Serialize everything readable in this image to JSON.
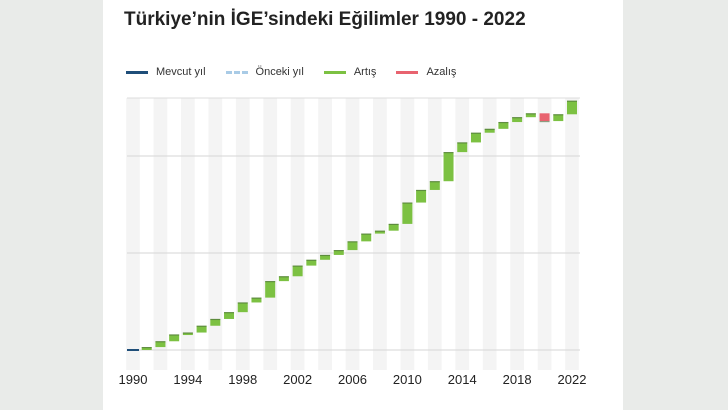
{
  "title": "Türkiye’nin İGE’sindeki Eğilimler 1990 - 2022",
  "legend": [
    {
      "label": "Mevcut yıl",
      "color": "#1f4e79",
      "style": "solid"
    },
    {
      "label": "Önceki yıl",
      "color": "#a9cbe6",
      "style": "dashed"
    },
    {
      "label": "Artış",
      "color": "#7cc142",
      "style": "solid"
    },
    {
      "label": "Azalış",
      "color": "#e8636f",
      "style": "solid"
    }
  ],
  "chart_data": {
    "type": "bar",
    "subtype": "waterfall",
    "title": "Türkiye’nin İGE’sindeki Eğilimler 1990 - 2022",
    "x": [
      1990,
      1991,
      1992,
      1993,
      1994,
      1995,
      1996,
      1997,
      1998,
      1999,
      2000,
      2001,
      2002,
      2003,
      2004,
      2005,
      2006,
      2007,
      2008,
      2009,
      2010,
      2011,
      2012,
      2013,
      2014,
      2015,
      2016,
      2017,
      2018,
      2019,
      2020,
      2021,
      2022
    ],
    "values": [
      0.6,
      0.603,
      0.609,
      0.616,
      0.618,
      0.625,
      0.632,
      0.639,
      0.649,
      0.654,
      0.671,
      0.676,
      0.687,
      0.693,
      0.698,
      0.703,
      0.712,
      0.72,
      0.723,
      0.73,
      0.752,
      0.765,
      0.774,
      0.804,
      0.814,
      0.824,
      0.828,
      0.835,
      0.84,
      0.844,
      0.836,
      0.843,
      0.857
    ],
    "x_ticks": [
      "1990",
      "1994",
      "1998",
      "2002",
      "2006",
      "2010",
      "2014",
      "2018",
      "2022"
    ],
    "ylim": [
      0.58,
      0.86
    ],
    "y_gridlines": [
      0.6,
      0.7,
      0.8
    ],
    "y_tick_labels_shown": false,
    "grid": true,
    "legend_position": "top-left",
    "colors": {
      "increase": "#7cc142",
      "decrease": "#e8636f",
      "current": "#1f4e79"
    }
  }
}
